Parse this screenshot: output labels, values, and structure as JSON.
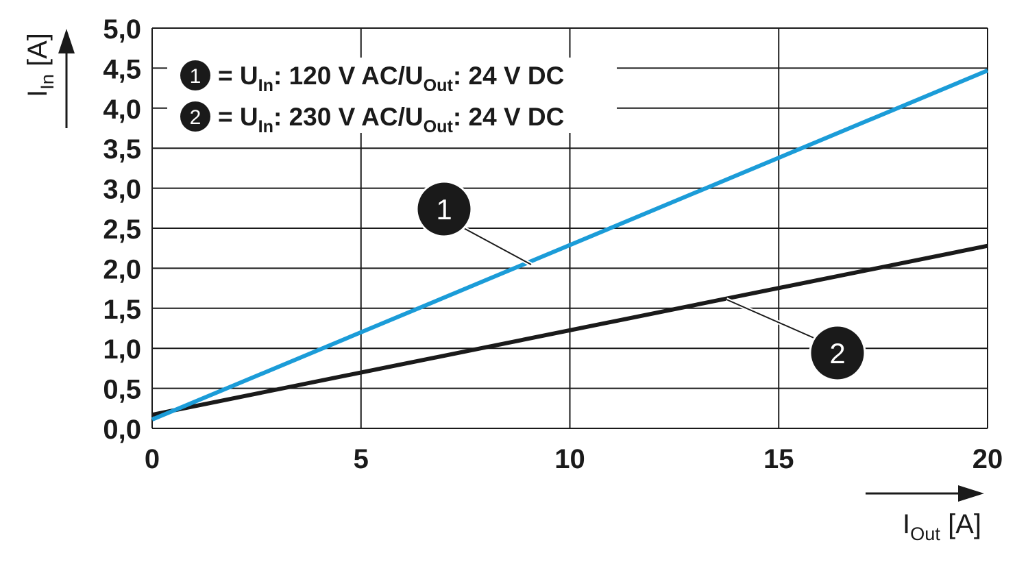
{
  "chart_data": {
    "type": "line",
    "x": [
      0,
      20
    ],
    "series": [
      {
        "name": [
          "= U",
          "In",
          ": 120 V AC/U",
          "Out",
          ": 24 V DC"
        ],
        "label": "1",
        "color": "#1b9cd8",
        "values": [
          0.11,
          4.47
        ]
      },
      {
        "name": [
          "= U",
          "In",
          ": 230 V AC/U",
          "Out",
          ": 24 V DC"
        ],
        "label": "2",
        "color": "#1a1a1a",
        "values": [
          0.17,
          2.28
        ]
      }
    ],
    "xlim": [
      0,
      20
    ],
    "xticks": [
      0,
      5,
      10,
      15,
      20
    ],
    "ylim": [
      0,
      5
    ],
    "yticks": [
      {
        "value": 0,
        "label": "0,0"
      },
      {
        "value": 0.5,
        "label": "0,5"
      },
      {
        "value": 1,
        "label": "1,0"
      },
      {
        "value": 1.5,
        "label": "1,5"
      },
      {
        "value": 2,
        "label": "2,0"
      },
      {
        "value": 2.5,
        "label": "2,5"
      },
      {
        "value": 3,
        "label": "3,0"
      },
      {
        "value": 3.5,
        "label": "3,5"
      },
      {
        "value": 4,
        "label": "4,0"
      },
      {
        "value": 4.5,
        "label": "4,5"
      },
      {
        "value": 5,
        "label": "5,0"
      }
    ],
    "xlabel": [
      "I",
      "Out",
      " [A]"
    ],
    "ylabel": [
      "I",
      "In",
      " [A]"
    ],
    "grid": true
  }
}
